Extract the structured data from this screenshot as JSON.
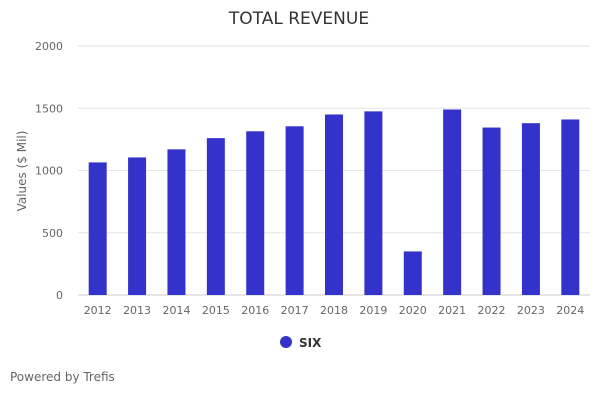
{
  "chart_data": {
    "type": "bar",
    "title": "TOTAL REVENUE",
    "xlabel": "",
    "ylabel": "Values ($ Mil)",
    "ylim": [
      0,
      2000
    ],
    "yticks": [
      0,
      500,
      1000,
      1500,
      2000
    ],
    "grid": true,
    "categories": [
      "2012",
      "2013",
      "2014",
      "2015",
      "2016",
      "2017",
      "2018",
      "2019",
      "2020",
      "2021",
      "2022",
      "2023",
      "2024"
    ],
    "series": [
      {
        "name": "SIX",
        "color": "#3333cc",
        "values": [
          1065,
          1105,
          1170,
          1260,
          1315,
          1355,
          1450,
          1475,
          350,
          1490,
          1345,
          1380,
          1410
        ]
      }
    ],
    "legend_position": "bottom-center"
  },
  "footer": {
    "credit": "Powered by Trefis"
  }
}
